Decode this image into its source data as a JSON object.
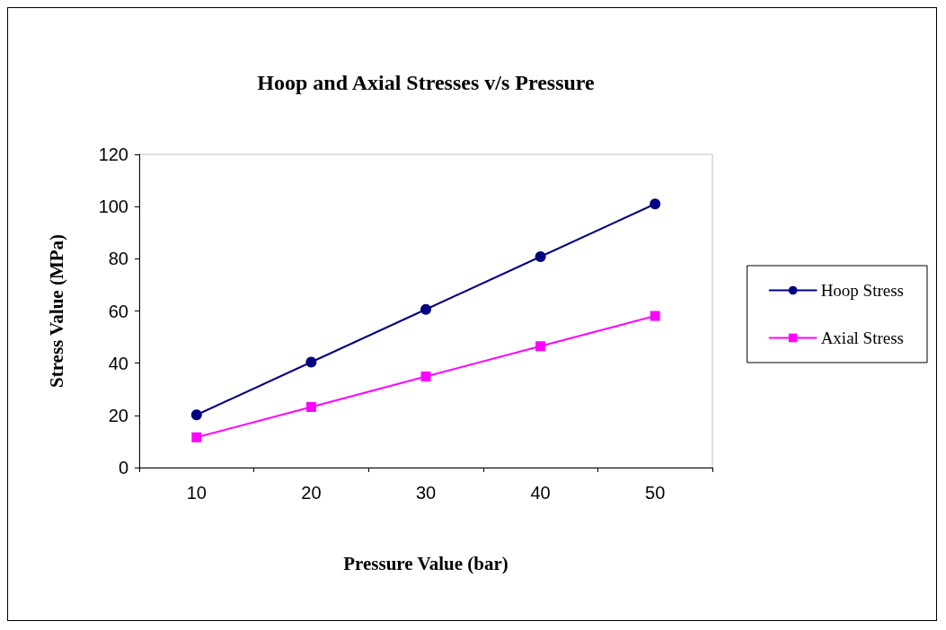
{
  "chart_data": {
    "type": "line",
    "title": "Hoop and Axial Stresses v/s Pressure",
    "xlabel": "Pressure Value (bar)",
    "ylabel": "Stress Value (MPa)",
    "categories": [
      "10",
      "20",
      "30",
      "40",
      "50"
    ],
    "series": [
      {
        "name": "Hoop Stress",
        "color": "#000080",
        "marker": "circle",
        "values": [
          20.2,
          40.4,
          60.6,
          80.8,
          101
        ]
      },
      {
        "name": "Axial Stress",
        "color": "#ff00ff",
        "marker": "square",
        "values": [
          11.6,
          23.2,
          34.9,
          46.5,
          58.1
        ]
      }
    ],
    "ylim": [
      0,
      120
    ],
    "yticks": [
      0,
      20,
      40,
      60,
      80,
      100,
      120
    ],
    "grid": false,
    "legend": "right",
    "line_style": "solid"
  }
}
